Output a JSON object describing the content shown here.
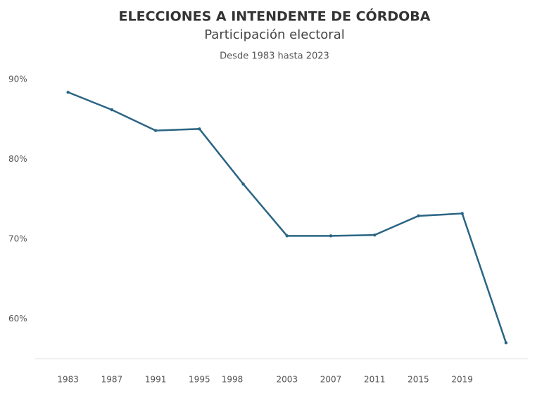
{
  "chart_data": {
    "type": "line",
    "title": "ELECCIONES A INTENDENTE DE CÓRDOBA",
    "subtitle": "Participación electoral",
    "note": "Desde 1983 hasta 2023",
    "x": [
      1983,
      1987,
      1991,
      1995,
      1999,
      2003,
      2007,
      2011,
      2015,
      2019,
      2023
    ],
    "series": [
      {
        "name": "Participación electoral",
        "color": "#2a6584",
        "values": [
          88.4,
          86.2,
          83.6,
          83.8,
          76.9,
          70.4,
          70.4,
          70.5,
          72.9,
          73.2,
          57.0
        ]
      }
    ],
    "xlim": [
      1980,
      2025
    ],
    "xticks": [
      1983,
      1987,
      1991,
      1995,
      1998,
      2003,
      2007,
      2011,
      2015,
      2019
    ],
    "ylim": [
      55,
      90
    ],
    "yticks": [
      {
        "value": 60,
        "label": "60%"
      },
      {
        "value": 70,
        "label": "70%"
      },
      {
        "value": 80,
        "label": "80%"
      },
      {
        "value": 90,
        "label": "90%"
      }
    ],
    "grid": false
  }
}
